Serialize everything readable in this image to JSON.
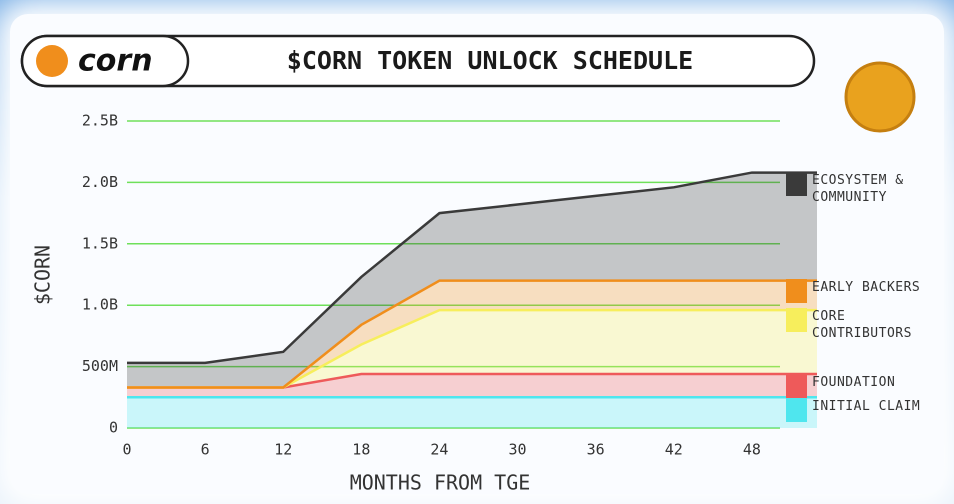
{
  "logo_text": "corn",
  "chart_data": {
    "type": "stacked-area",
    "title": "$CORN TOKEN UNLOCK SCHEDULE",
    "x_label": "MONTHS FROM TGE",
    "y_label": "$CORN",
    "x": [
      0,
      6,
      12,
      18,
      24,
      30,
      36,
      42,
      48,
      53
    ],
    "xlim": [
      0,
      53
    ],
    "xticks": [
      0,
      6,
      12,
      18,
      24,
      30,
      36,
      42,
      48
    ],
    "ylim": [
      0,
      2500000000
    ],
    "yticks": [
      0,
      {
        "value": 500000000,
        "label": "500M"
      },
      {
        "value": 1000000000,
        "label": "1.0B"
      },
      {
        "value": 1500000000,
        "label": "1.5B"
      },
      {
        "value": 2000000000,
        "label": "2.0B"
      },
      {
        "value": 2500000000,
        "label": "2.5B"
      }
    ],
    "grid": true,
    "grid_color": "#6fe05a",
    "series": [
      {
        "name": "INITIAL CLAIM",
        "color": "#4fe6ee",
        "values": [
          250000000,
          250000000,
          250000000,
          250000000,
          250000000,
          250000000,
          250000000,
          250000000,
          250000000,
          250000000
        ]
      },
      {
        "name": "FOUNDATION",
        "color": "#ee5a5a",
        "values": [
          80000000,
          80000000,
          80000000,
          190000000,
          190000000,
          190000000,
          190000000,
          190000000,
          190000000,
          190000000
        ]
      },
      {
        "name": "CORE CONTRIBUTORS",
        "color": "#f7ee5c",
        "values": [
          0,
          0,
          0,
          240000000,
          520000000,
          520000000,
          520000000,
          520000000,
          520000000,
          520000000
        ]
      },
      {
        "name": "EARLY BACKERS",
        "color": "#f08e1c",
        "values": [
          0,
          0,
          0,
          160000000,
          240000000,
          240000000,
          240000000,
          240000000,
          240000000,
          240000000
        ]
      },
      {
        "name": "ECOSYSTEM & COMMUNITY",
        "color": "#3a3a3a",
        "values": [
          200000000,
          200000000,
          290000000,
          390000000,
          550000000,
          620000000,
          690000000,
          760000000,
          880000000,
          880000000
        ]
      }
    ]
  }
}
